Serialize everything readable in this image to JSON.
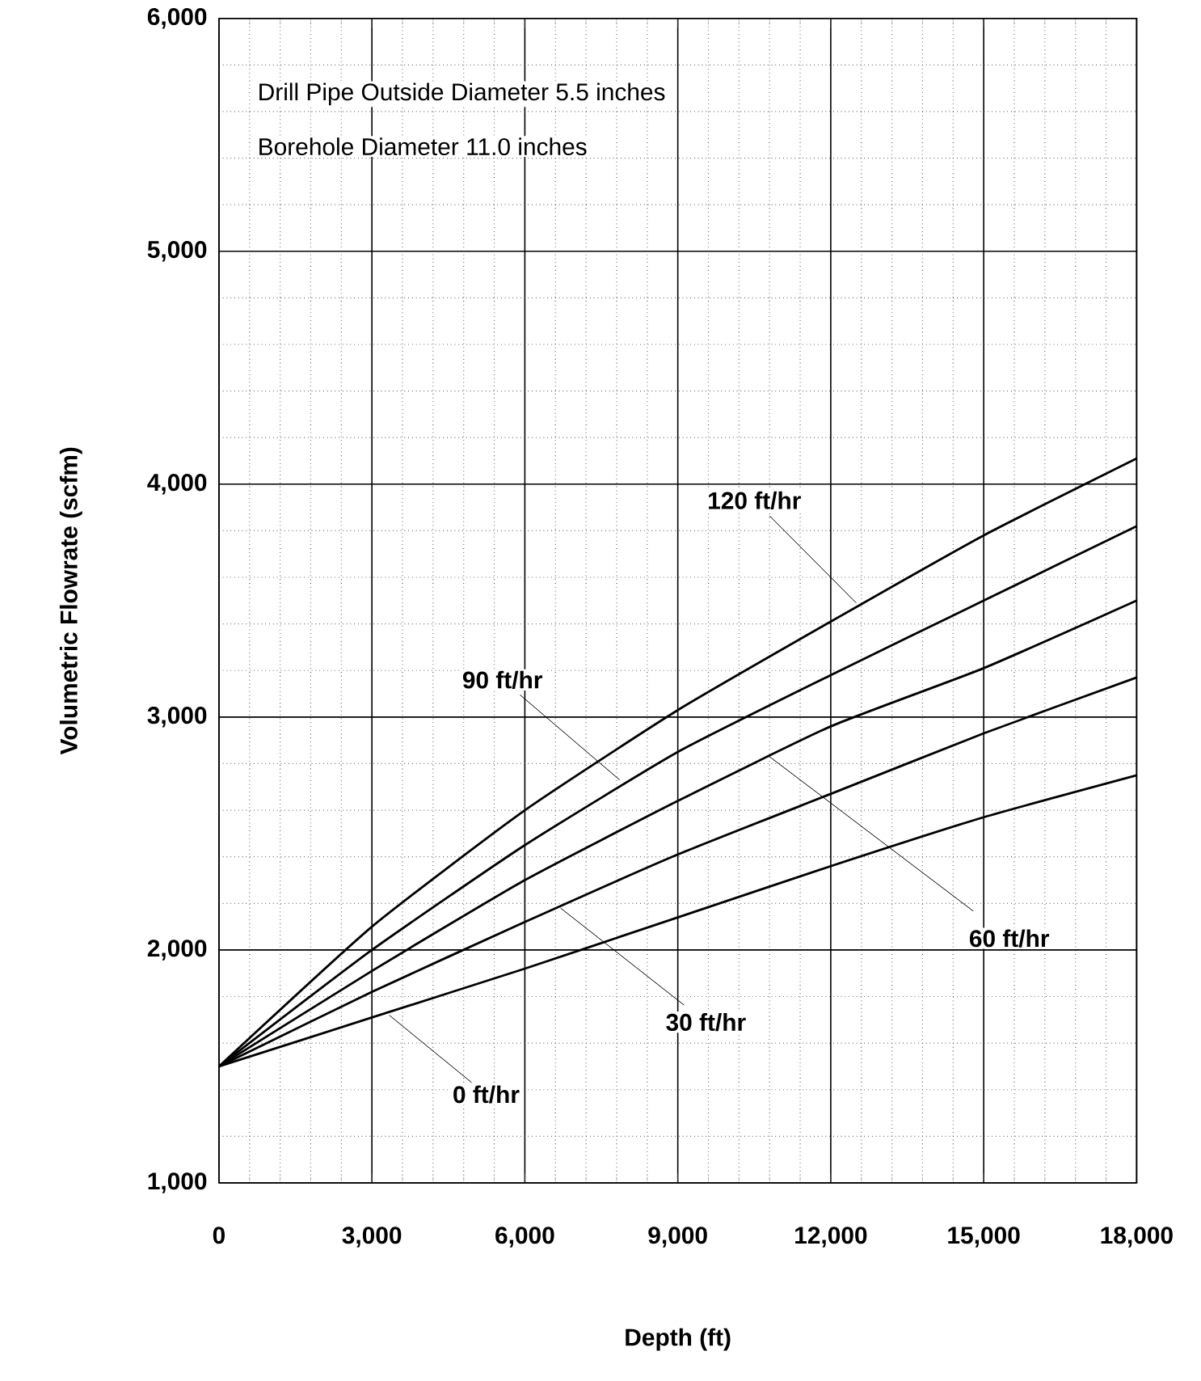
{
  "chart_data": {
    "type": "line",
    "xlabel": "Depth (ft)",
    "ylabel": "Volumetric Flowrate (scfm)",
    "x": [
      0,
      3000,
      6000,
      9000,
      12000,
      15000,
      18000
    ],
    "series": [
      {
        "color": "#000000",
        "values": [
          1500,
          2100,
          2600,
          3030,
          3410,
          3780,
          4110
        ]
      },
      {
        "color": "#000000",
        "values": [
          1500,
          2000,
          2450,
          2850,
          3180,
          3500,
          3820
        ]
      },
      {
        "color": "#000000",
        "values": [
          1500,
          1910,
          2300,
          2640,
          2960,
          3210,
          3500
        ]
      },
      {
        "color": "#000000",
        "values": [
          1500,
          1820,
          2120,
          2410,
          2670,
          2930,
          3170
        ]
      },
      {
        "color": "#000000",
        "values": [
          1500,
          1710,
          1920,
          2140,
          2360,
          2570,
          2750
        ]
      }
    ],
    "xlim": [
      0,
      18000
    ],
    "ylim": [
      1000,
      6000
    ],
    "xticks": [
      {
        "value": 0,
        "label": "0"
      },
      {
        "value": 3000,
        "label": "3,000"
      },
      {
        "value": 6000,
        "label": "6,000"
      },
      {
        "value": 9000,
        "label": "9,000"
      },
      {
        "value": 12000,
        "label": "12,000"
      },
      {
        "value": 15000,
        "label": "15,000"
      },
      {
        "value": 18000,
        "label": "18,000"
      }
    ],
    "yticks": [
      {
        "value": 1000,
        "label": "1,000"
      },
      {
        "value": 2000,
        "label": "2,000"
      },
      {
        "value": 3000,
        "label": "3,000"
      },
      {
        "value": 4000,
        "label": "4,000"
      },
      {
        "value": 5000,
        "label": "5,000"
      },
      {
        "value": 6000,
        "label": "6,000"
      }
    ],
    "grid": true,
    "marker": "none",
    "line_style": "solid",
    "legend": false,
    "annotations": [
      "Drill Pipe Outside Diameter 5.5 inches",
      "Borehole Diameter 11.0 inches",
      {
        "text": "120 ft/hr",
        "x": 12500,
        "y": 3490
      },
      {
        "text": "90 ft/hr",
        "x": 7860,
        "y": 2730
      },
      {
        "text": "60 ft/hr",
        "x": 10800,
        "y": 2830
      },
      {
        "text": "30 ft/hr",
        "x": 6700,
        "y": 2180
      },
      {
        "text": "0 ft/hr",
        "x": 3340,
        "y": 1720
      }
    ]
  }
}
